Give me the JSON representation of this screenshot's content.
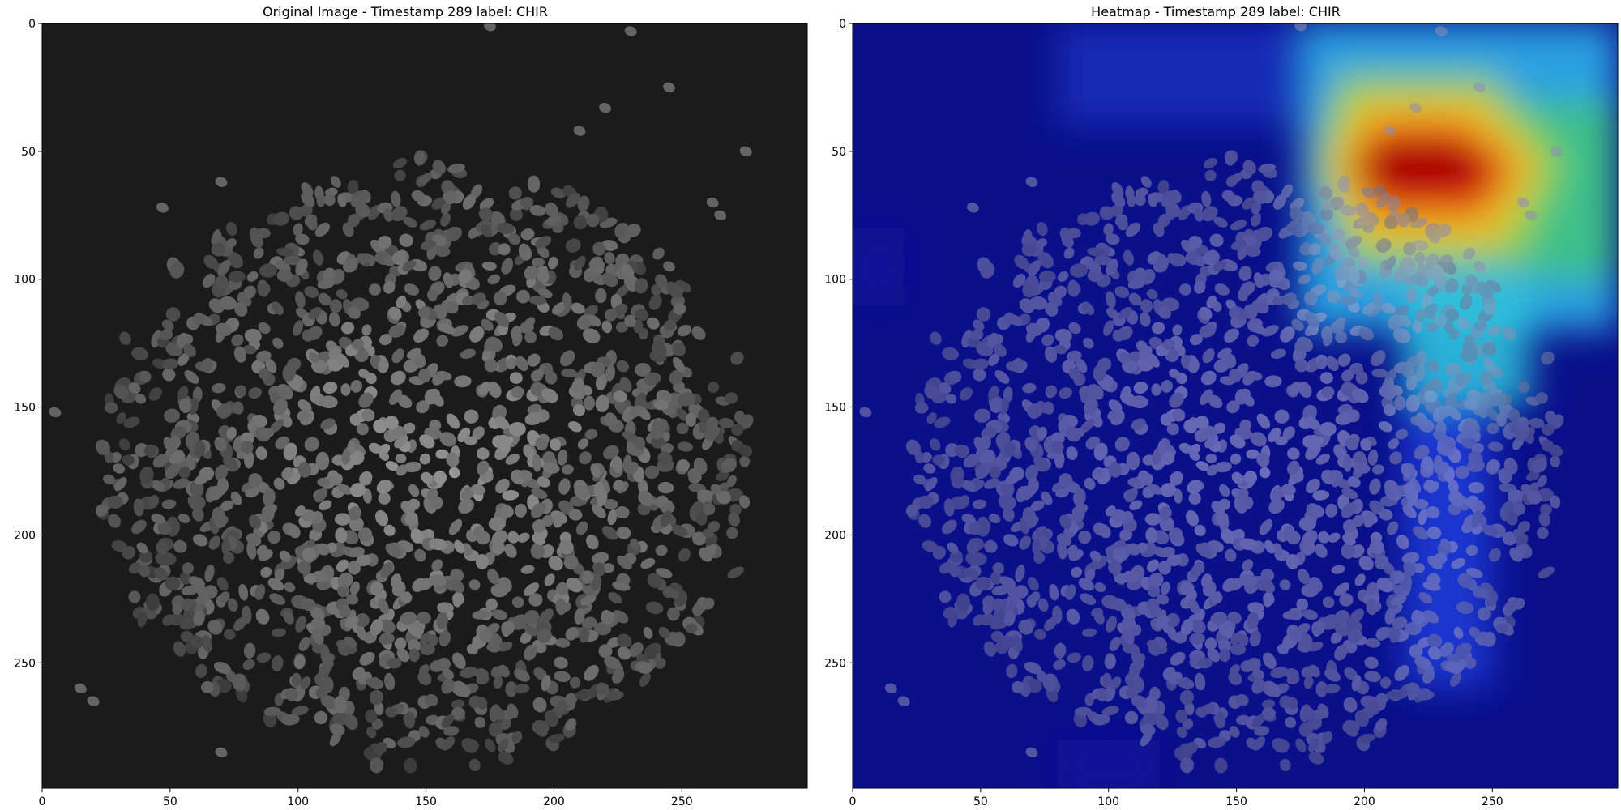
{
  "figure": {
    "panels": [
      {
        "title": "Original Image - Timestamp 289 label: CHIR",
        "kind": "grayscale-microscopy"
      },
      {
        "title": "Heatmap - Timestamp 289 label: CHIR",
        "kind": "heatmap-overlay",
        "colormap": "jet"
      }
    ],
    "axes": {
      "x_ticks": [
        "0",
        "50",
        "100",
        "150",
        "200",
        "250"
      ],
      "y_ticks": [
        "0",
        "50",
        "100",
        "150",
        "200",
        "250"
      ],
      "x_tick_values": [
        0,
        50,
        100,
        150,
        200,
        250
      ],
      "y_tick_values": [
        0,
        50,
        100,
        150,
        200,
        250
      ],
      "xlim": [
        0,
        299
      ],
      "ylim": [
        299,
        0
      ]
    },
    "colors": {
      "background_dark": "#1b1b1b",
      "heatmap_low": "#0a0f8a",
      "heatmap_high": "#b40000"
    }
  }
}
